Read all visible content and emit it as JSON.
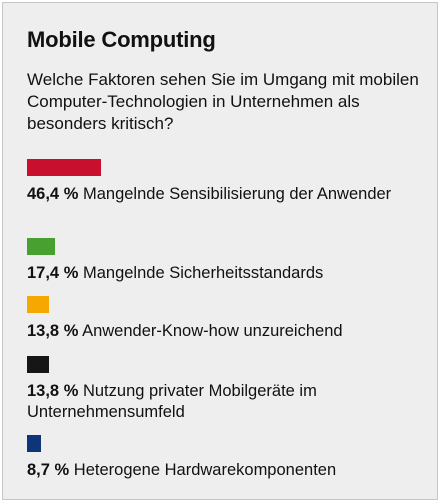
{
  "title": "Mobile Computing",
  "question": "Welche Faktoren sehen Sie im Umgang mit mobilen Computer-Technologien in Unternehmen als besonders kritisch?",
  "chart_data": {
    "type": "bar",
    "orientation": "horizontal",
    "unit": "%",
    "categories": [
      "Mangelnde Sensibilisierung der Anwender",
      "Mangelnde Sicherheitsstandards",
      "Anwender-Know-how unzureichend",
      "Nutzung privater Mobilgeräte im Unternehmensumfeld",
      "Heterogene Hardwarekomponenten"
    ],
    "values": [
      46.4,
      17.4,
      13.8,
      13.8,
      8.7
    ],
    "value_labels": [
      "46,4 %",
      "17,4 %",
      "13,8 %",
      "13,8 %",
      "8,7 %"
    ],
    "colors": [
      "#c8102e",
      "#48a030",
      "#f5a800",
      "#161616",
      "#10347a"
    ]
  }
}
